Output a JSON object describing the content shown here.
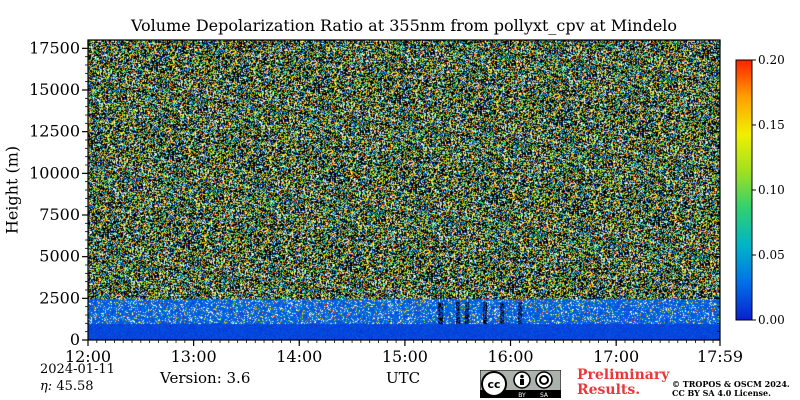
{
  "chart_data": {
    "type": "heatmap",
    "title": "Volume Depolarization Ratio at 355nm from pollyxt_cpv at Mindelo",
    "xlabel": "UTC",
    "ylabel": "Height (m)",
    "x_range": [
      "12:00",
      "17:59"
    ],
    "x_tick_labels": [
      "12:00",
      "13:00",
      "14:00",
      "15:00",
      "16:00",
      "17:00",
      "17:59"
    ],
    "x_tick_hours": [
      12,
      13,
      14,
      15,
      16,
      17,
      17.983
    ],
    "ylim": [
      0,
      18000
    ],
    "y_ticks": [
      0,
      2500,
      5000,
      7500,
      10000,
      12500,
      15000,
      17500
    ],
    "y_tick_labels": [
      "0",
      "2500",
      "5000",
      "7500",
      "10000",
      "12500",
      "15000",
      "17500"
    ],
    "colorbar": {
      "range": [
        0.0,
        0.2
      ],
      "ticks": [
        0.0,
        0.05,
        0.1,
        0.15,
        0.2
      ],
      "tick_labels": [
        "0.00",
        "0.05",
        "0.10",
        "0.15",
        "0.20"
      ],
      "colormap": [
        "#0a1fd0",
        "#0070e8",
        "#00b4c8",
        "#30d070",
        "#a0e020",
        "#f0f000",
        "#ffa000",
        "#ff2000"
      ]
    },
    "layers": [
      {
        "height_range": [
          0,
          1000
        ],
        "dominant_value": 0.01
      },
      {
        "height_range": [
          1000,
          2500
        ],
        "dominant_value": 0.02
      },
      {
        "height_range": [
          2500,
          18000
        ],
        "description_value": "noisy, 0.0-0.2"
      }
    ],
    "gaps_utc": [
      "15:20",
      "15:30",
      "15:35",
      "15:45",
      "15:55",
      "16:05"
    ]
  },
  "footer": {
    "date": "2024-01-11",
    "eta_label": "η:",
    "eta_value": "45.58",
    "version": "Version: 3.6",
    "prelim_line1": "Preliminary",
    "prelim_line2": "Results.",
    "copyright_line1": "© TROPOS & OSCM 2024.",
    "copyright_line2": "CC BY SA 4.0 License."
  },
  "badge": {
    "cc": "cc",
    "by": "BY",
    "sa": "SA"
  }
}
